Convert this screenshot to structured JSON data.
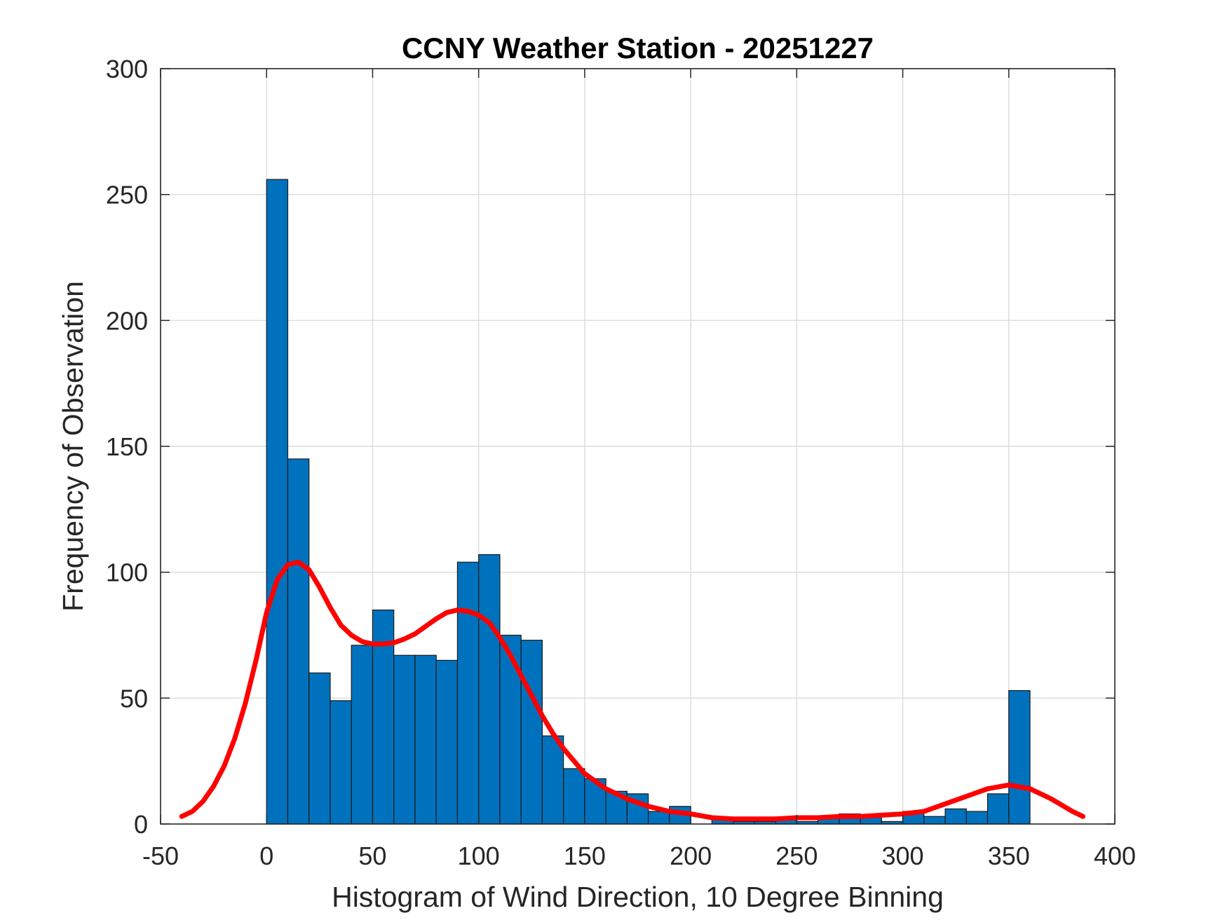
{
  "chart_data": {
    "type": "bar",
    "title": "CCNY Weather Station - 20251227",
    "xlabel": "Histogram of Wind Direction, 10 Degree Binning",
    "ylabel": "Frequency of Observation",
    "xlim": [
      -50,
      400
    ],
    "ylim": [
      0,
      300
    ],
    "xticks": [
      "-50",
      "0",
      "50",
      "100",
      "150",
      "200",
      "250",
      "300",
      "350",
      "400"
    ],
    "yticks": [
      "0",
      "50",
      "100",
      "150",
      "200",
      "250",
      "300"
    ],
    "grid": true,
    "bin_width": 10,
    "bin_edges_start": [
      0,
      10,
      20,
      30,
      40,
      50,
      60,
      70,
      80,
      90,
      100,
      110,
      120,
      130,
      140,
      150,
      160,
      170,
      180,
      190,
      200,
      210,
      220,
      230,
      240,
      250,
      260,
      270,
      280,
      290,
      300,
      310,
      320,
      330,
      340,
      350
    ],
    "values": [
      256,
      145,
      60,
      49,
      71,
      85,
      67,
      67,
      65,
      104,
      107,
      75,
      73,
      35,
      22,
      18,
      13,
      12,
      5,
      7,
      0,
      2,
      1,
      1,
      2,
      1,
      3,
      4,
      3,
      1,
      5,
      3,
      6,
      5,
      12,
      53
    ],
    "bar_color": "#0072BD",
    "density_curve": {
      "color": "#FF0000",
      "x": [
        -40,
        -35,
        -30,
        -25,
        -20,
        -15,
        -10,
        -5,
        0,
        5,
        10,
        15,
        20,
        25,
        30,
        35,
        40,
        45,
        50,
        55,
        60,
        65,
        70,
        75,
        80,
        85,
        90,
        95,
        100,
        105,
        110,
        115,
        120,
        125,
        130,
        135,
        140,
        145,
        150,
        160,
        170,
        180,
        190,
        200,
        210,
        220,
        230,
        240,
        250,
        260,
        270,
        280,
        290,
        300,
        310,
        320,
        330,
        340,
        350,
        360,
        370,
        380,
        385
      ],
      "y": [
        3,
        5,
        9,
        15,
        23,
        34,
        48,
        65,
        84,
        97,
        103,
        104,
        101,
        94,
        86,
        79,
        75,
        72.5,
        71.5,
        71.5,
        72,
        73.5,
        75.5,
        78.5,
        81.5,
        84,
        85,
        84.5,
        83,
        80,
        74,
        67,
        59,
        51,
        43,
        36,
        30,
        25,
        20,
        14,
        10,
        7,
        5,
        4,
        2.5,
        2,
        2,
        2,
        2.5,
        2.5,
        3,
        3,
        3.5,
        4,
        5,
        8,
        11,
        14,
        15.5,
        14,
        10,
        5,
        3
      ]
    }
  }
}
